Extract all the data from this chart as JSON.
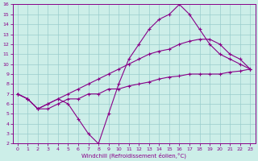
{
  "bg_color": "#cceee8",
  "line_color": "#880088",
  "grid_color": "#99cccc",
  "xlabel": "Windchill (Refroidissement éolien,°C)",
  "xlabel_color": "#880088",
  "tick_color": "#880088",
  "border_color": "#880088",
  "xlim": [
    -0.5,
    23.5
  ],
  "ylim": [
    2,
    16
  ],
  "xticks": [
    0,
    1,
    2,
    3,
    4,
    5,
    6,
    7,
    8,
    9,
    10,
    11,
    12,
    13,
    14,
    15,
    16,
    17,
    18,
    19,
    20,
    21,
    22,
    23
  ],
  "yticks": [
    2,
    3,
    4,
    5,
    6,
    7,
    8,
    9,
    10,
    11,
    12,
    13,
    14,
    15,
    16
  ],
  "series": [
    {
      "x": [
        0,
        1,
        2,
        3,
        4,
        5,
        6,
        7,
        8,
        9,
        10,
        11,
        12,
        13,
        14,
        15,
        16,
        17,
        18,
        19,
        20,
        21,
        22,
        23
      ],
      "y": [
        7.0,
        6.5,
        5.5,
        6.0,
        6.5,
        6.0,
        4.5,
        3.0,
        2.0,
        5.0,
        8.0,
        10.5,
        12.0,
        13.5,
        14.5,
        15.0,
        16.0,
        15.0,
        13.5,
        12.0,
        11.0,
        10.5,
        10.0,
        9.5
      ]
    },
    {
      "x": [
        0,
        1,
        2,
        3,
        4,
        5,
        6,
        7,
        8,
        9,
        10,
        11,
        12,
        13,
        14,
        15,
        16,
        17,
        18,
        19,
        20,
        21,
        22,
        23
      ],
      "y": [
        7.0,
        6.5,
        5.5,
        6.0,
        6.5,
        7.0,
        7.5,
        8.0,
        8.5,
        9.0,
        9.5,
        10.0,
        10.5,
        11.0,
        11.3,
        11.5,
        12.0,
        12.3,
        12.5,
        12.5,
        12.0,
        11.0,
        10.5,
        9.5
      ]
    },
    {
      "x": [
        0,
        1,
        2,
        3,
        4,
        5,
        6,
        7,
        8,
        9,
        10,
        11,
        12,
        13,
        14,
        15,
        16,
        17,
        18,
        19,
        20,
        21,
        22,
        23
      ],
      "y": [
        7.0,
        6.5,
        5.5,
        5.5,
        6.0,
        6.5,
        6.5,
        7.0,
        7.0,
        7.5,
        7.5,
        7.8,
        8.0,
        8.2,
        8.5,
        8.7,
        8.8,
        9.0,
        9.0,
        9.0,
        9.0,
        9.2,
        9.3,
        9.5
      ]
    }
  ]
}
